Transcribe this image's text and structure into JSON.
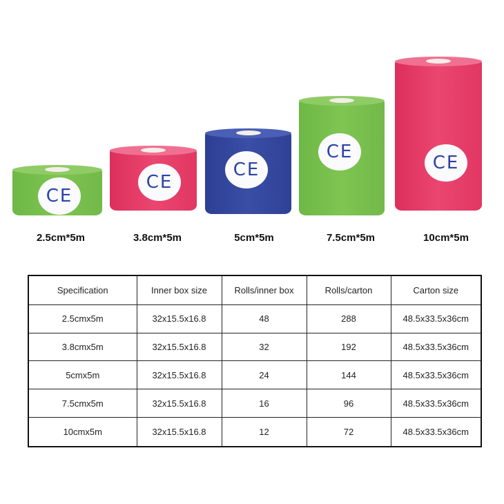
{
  "rolls": [
    {
      "label": "2.5cm*5m",
      "color": "green",
      "mark": "CE"
    },
    {
      "label": "3.8cm*5m",
      "color": "pink",
      "mark": "CE"
    },
    {
      "label": "5cm*5m",
      "color": "blue",
      "mark": "CE"
    },
    {
      "label": "7.5cm*5m",
      "color": "green",
      "mark": "CE"
    },
    {
      "label": "10cm*5m",
      "color": "pink",
      "mark": "CE"
    }
  ],
  "colors": {
    "green": "#7fc552",
    "pink": "#ea4670",
    "blue": "#3a4ea6",
    "ce_mark": "#2b43a6"
  },
  "table": {
    "headers": [
      "Specification",
      "Inner box size",
      "Rolls/inner box",
      "Rolls/carton",
      "Carton size"
    ],
    "rows": [
      [
        "2.5cmx5m",
        "32x15.5x16.8",
        "48",
        "288",
        "48.5x33.5x36cm"
      ],
      [
        "3.8cmx5m",
        "32x15.5x16.8",
        "32",
        "192",
        "48.5x33.5x36cm"
      ],
      [
        "5cmx5m",
        "32x15.5x16.8",
        "24",
        "144",
        "48.5x33.5x36cm"
      ],
      [
        "7.5cmx5m",
        "32x15.5x16.8",
        "16",
        "96",
        "48.5x33.5x36cm"
      ],
      [
        "10cmx5m",
        "32x15.5x16.8",
        "12",
        "72",
        "48.5x33.5x36cm"
      ]
    ]
  }
}
